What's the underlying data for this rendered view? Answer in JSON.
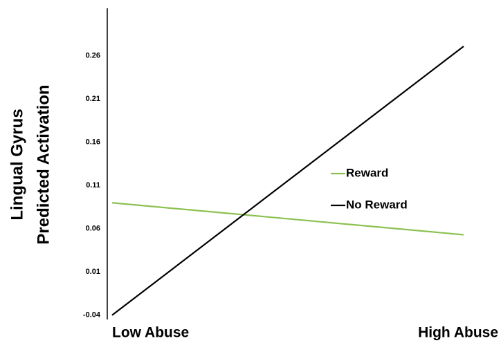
{
  "chart_data": {
    "type": "line",
    "ylabel": [
      "Lingual Gyrus",
      "Predicted Activation"
    ],
    "categories": [
      "Low Abuse",
      "High Abuse"
    ],
    "series": [
      {
        "name": "Reward",
        "color": "#8cc152",
        "values": [
          0.09,
          0.053
        ]
      },
      {
        "name": "No Reward",
        "color": "#000000",
        "values": [
          -0.04,
          0.271
        ]
      }
    ],
    "ylim": [
      -0.045,
      0.315
    ],
    "yticks": [
      -0.04,
      0.01,
      0.06,
      0.11,
      0.16,
      0.21,
      0.26
    ],
    "grid": false,
    "legend": "right"
  }
}
